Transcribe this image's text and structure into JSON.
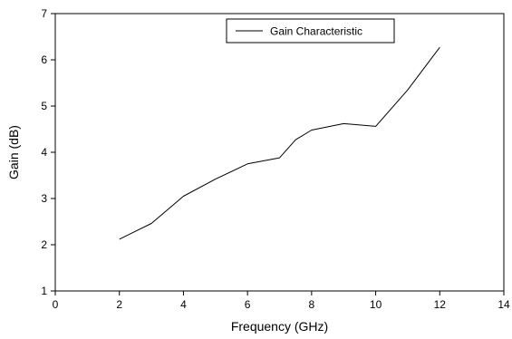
{
  "chart_data": {
    "type": "line",
    "title": "",
    "xlabel": "Frequency (GHz)",
    "ylabel": "Gain (dB)",
    "xlim": [
      0,
      14
    ],
    "ylim": [
      1,
      7
    ],
    "xticks": [
      0,
      2,
      4,
      6,
      8,
      10,
      12,
      14
    ],
    "yticks": [
      1,
      2,
      3,
      4,
      5,
      6,
      7
    ],
    "grid": false,
    "legend_position": "top-center",
    "series": [
      {
        "name": "Gain Characteristic",
        "color": "#000000",
        "x": [
          2,
          3,
          4,
          5,
          6,
          7,
          7.5,
          8,
          9,
          10,
          11,
          12
        ],
        "y": [
          2.12,
          2.46,
          3.05,
          3.42,
          3.75,
          3.88,
          4.27,
          4.48,
          4.62,
          4.56,
          5.35,
          6.27
        ]
      }
    ]
  }
}
